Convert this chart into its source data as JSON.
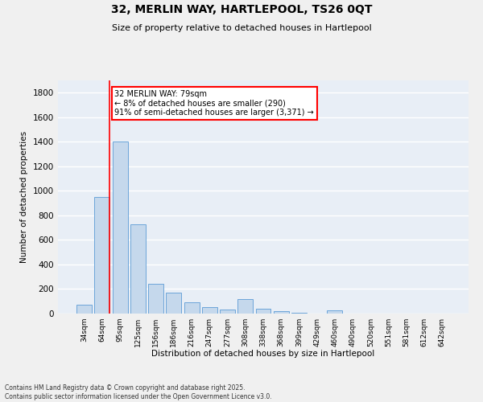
{
  "title_line1": "32, MERLIN WAY, HARTLEPOOL, TS26 0QT",
  "title_line2": "Size of property relative to detached houses in Hartlepool",
  "xlabel": "Distribution of detached houses by size in Hartlepool",
  "ylabel": "Number of detached properties",
  "categories": [
    "34sqm",
    "64sqm",
    "95sqm",
    "125sqm",
    "156sqm",
    "186sqm",
    "216sqm",
    "247sqm",
    "277sqm",
    "308sqm",
    "338sqm",
    "368sqm",
    "399sqm",
    "429sqm",
    "460sqm",
    "490sqm",
    "520sqm",
    "551sqm",
    "581sqm",
    "612sqm",
    "642sqm"
  ],
  "values": [
    75,
    950,
    1400,
    725,
    240,
    170,
    90,
    55,
    30,
    120,
    40,
    20,
    5,
    0,
    25,
    0,
    0,
    0,
    0,
    0,
    0
  ],
  "bar_color": "#c5d8ec",
  "bar_edge_color": "#5b9bd5",
  "red_line_index": 1,
  "annotation_text": "32 MERLIN WAY: 79sqm\n← 8% of detached houses are smaller (290)\n91% of semi-detached houses are larger (3,371) →",
  "annotation_box_color": "#ffffff",
  "annotation_edge_color": "#ff0000",
  "ylim": [
    0,
    1900
  ],
  "yticks": [
    0,
    200,
    400,
    600,
    800,
    1000,
    1200,
    1400,
    1600,
    1800
  ],
  "background_color": "#e8eef6",
  "grid_color": "#ffffff",
  "footer_line1": "Contains HM Land Registry data © Crown copyright and database right 2025.",
  "footer_line2": "Contains public sector information licensed under the Open Government Licence v3.0."
}
